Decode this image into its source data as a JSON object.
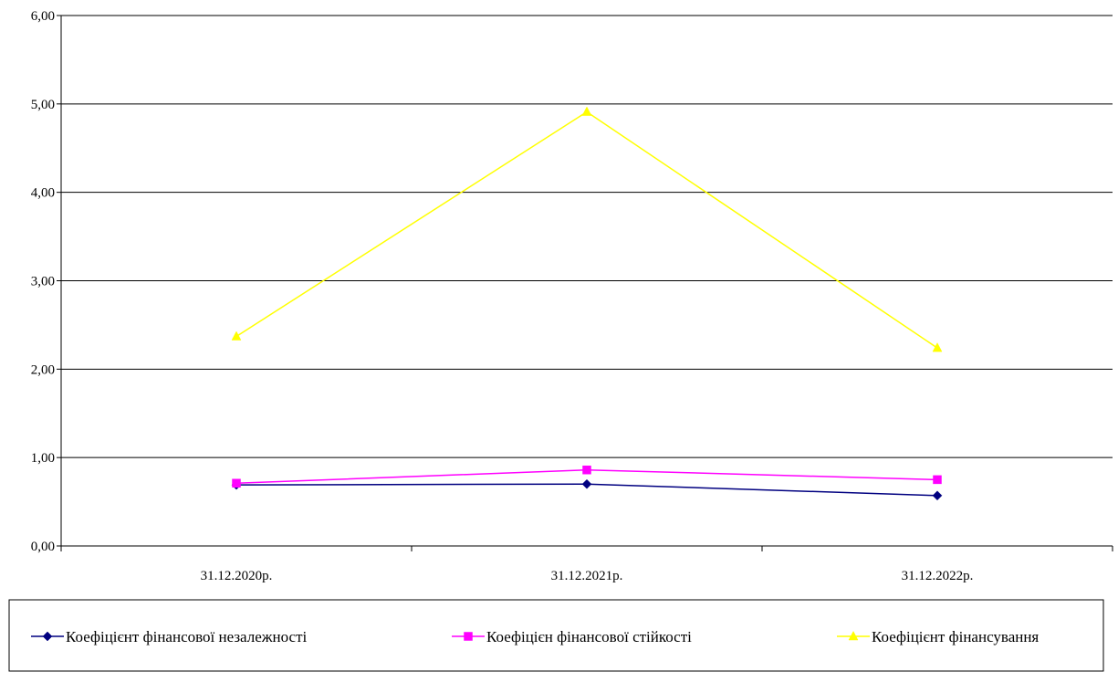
{
  "chart_data": {
    "type": "line",
    "categories": [
      "31.12.2020р.",
      "31.12.2021р.",
      "31.12.2022р."
    ],
    "series": [
      {
        "name": "Коефіцієнт фінансової незалежності",
        "values": [
          0.69,
          0.7,
          0.57
        ],
        "color": "#000080",
        "marker": "diamond"
      },
      {
        "name": "Коефіцієн фінансової стійкості",
        "values": [
          0.71,
          0.86,
          0.75
        ],
        "color": "#ff00ff",
        "marker": "square"
      },
      {
        "name": "Коефіцієнт фінансування",
        "values": [
          2.37,
          4.91,
          2.24
        ],
        "color": "#ffff00",
        "marker": "triangle"
      }
    ],
    "ylim": [
      0,
      6
    ],
    "yticks": [
      "0,00",
      "1,00",
      "2,00",
      "3,00",
      "4,00",
      "5,00",
      "6,00"
    ],
    "grid": true,
    "legend_position": "bottom",
    "title": "",
    "xlabel": "",
    "ylabel": ""
  }
}
